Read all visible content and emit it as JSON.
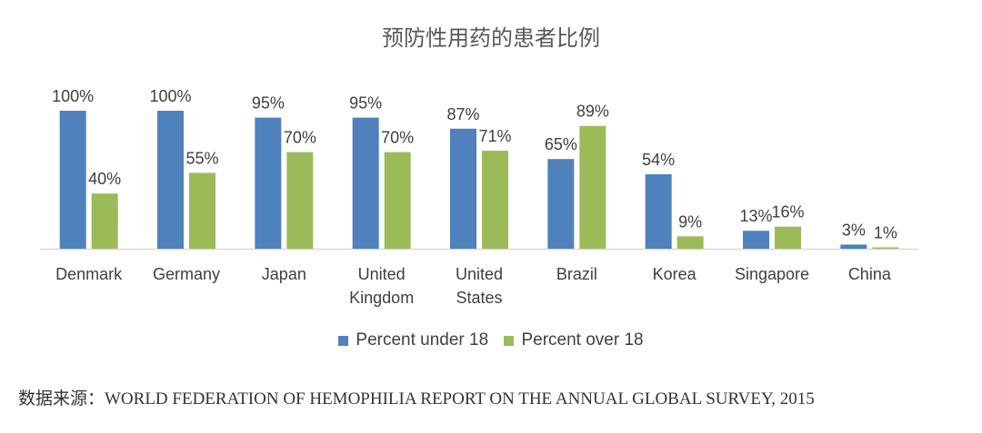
{
  "chart_data": {
    "type": "bar",
    "title": "预防性用药的患者比例",
    "categories": [
      "Denmark",
      "Germany",
      "Japan",
      "United Kingdom",
      "United States",
      "Brazil",
      "Korea",
      "Singapore",
      "China"
    ],
    "category_lines": [
      [
        "Denmark"
      ],
      [
        "Germany"
      ],
      [
        "Japan"
      ],
      [
        "United",
        "Kingdom"
      ],
      [
        "United",
        "States"
      ],
      [
        "Brazil"
      ],
      [
        "Korea"
      ],
      [
        "Singapore"
      ],
      [
        "China"
      ]
    ],
    "series": [
      {
        "name": "Percent under 18",
        "color": "#4F81BD",
        "values": [
          100,
          100,
          95,
          95,
          87,
          65,
          54,
          13,
          3
        ]
      },
      {
        "name": "Percent over 18",
        "color": "#9BBB59",
        "values": [
          40,
          55,
          70,
          70,
          71,
          89,
          9,
          16,
          1
        ]
      }
    ],
    "value_suffix": "%",
    "ylim": [
      0,
      100
    ],
    "grid": false,
    "legend_position": "bottom"
  },
  "source_note": "数据来源：WORLD FEDERATION OF HEMOPHILIA REPORT ON THE ANNUAL GLOBAL SURVEY, 2015"
}
